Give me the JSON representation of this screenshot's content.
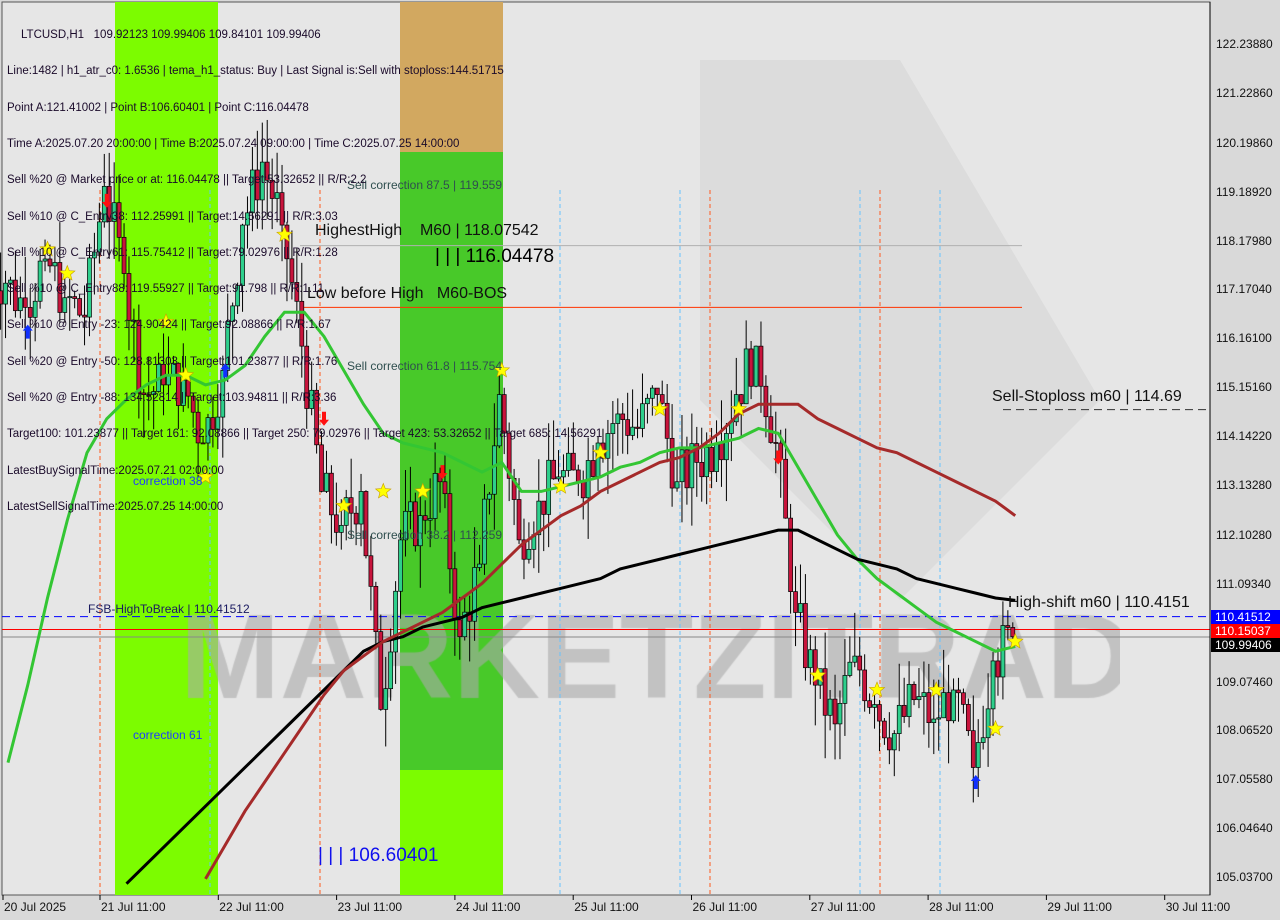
{
  "header": {
    "symbol": "LTCUSD,H1",
    "ohlc": "109.92123 109.99406 109.84101 109.99406",
    "lines": [
      "Line:1482 | h1_atr_c0: 1.6536 | tema_h1_status: Buy | Last Signal is:Sell with stoploss:144.51715",
      "Point A:121.41002 | Point B:106.60401 | Point C:116.04478",
      "Time A:2025.07.20 20:00:00 | Time B:2025.07.24 09:00:00 | Time C:2025.07.25 14:00:00",
      "Sell %20 @ Market price or at: 116.04478 || Target:53.32652 || R/R:2.2",
      "Sell %10 @ C_Entry38: 112.25991 || Target:14.56291 || R/R:3.03",
      "Sell %10 @ C_Entry61: 115.75412 || Target:79.02976 || R/R:1.28",
      "Sell %10 @ C_Entry88: 119.55927 || Target:91.798 || R/R:1.11",
      "Sell %10 @ Entry -23: 124.90424 || Target:92.08866 || R/R:1.67",
      "Sell %20 @ Entry -50: 128.81303 || Target:101.23877 || R/R:1.76",
      "Sell %20 @ Entry -88: 134.52814 || Target:103.94811 || R/R:3.36",
      "Target100: 101.23877 || Target 161: 92.08866 || Target 250: 79.02976 || Target 423: 53.32652 || Target 685: 14.56291",
      "LatestBuySignalTime:2025.07.21 02:00:00",
      "LatestSellSignalTime:2025.07.25 14:00:00"
    ]
  },
  "annotations": {
    "highest_high": "HighestHigh    M60 | 118.07542",
    "point_c": "| | | 116.04478",
    "low_before_high": "Low before High   M60-BOS",
    "sell_corr_875": "Sell correction 87.5 | 119.559",
    "sell_corr_618": "Sell correction 61.8 | 115.754",
    "sell_corr_382": "Sell correction 38.2 | 112.259",
    "correction_38": "correction 38",
    "correction_61": "correction 61",
    "fsb": "FSB-HighToBreak | 110.41512",
    "point_b": "| | | 106.60401",
    "sell_stoploss": "Sell-Stoploss m60 | 114.69",
    "high_shift": "High-shift m60 | 110.4151",
    "watermark": "MARKETZITRADE"
  },
  "price_axis": {
    "ticks": [
      "122.23880",
      "121.22860",
      "120.19860",
      "119.18920",
      "118.17980",
      "117.17040",
      "116.16100",
      "115.15160",
      "114.14220",
      "113.13280",
      "112.10280",
      "111.09340",
      "109.07460",
      "108.06520",
      "107.05580",
      "106.04640",
      "105.03700"
    ],
    "markers": [
      {
        "value": "110.41512",
        "color": "#0000ff"
      },
      {
        "value": "110.15037",
        "color": "#ff0000"
      },
      {
        "value": "109.99406",
        "color": "#000000"
      }
    ]
  },
  "time_axis": [
    "20 Jul 2025",
    "21 Jul 11:00",
    "22 Jul 11:00",
    "23 Jul 11:00",
    "24 Jul 11:00",
    "25 Jul 11:00",
    "26 Jul 11:00",
    "27 Jul 11:00",
    "28 Jul 11:00",
    "29 Jul 11:00",
    "30 Jul 11:00"
  ],
  "chart_data": {
    "type": "candlestick",
    "start": "2025-07-20 16:00",
    "interval_hours": 4,
    "ylim": [
      104.95,
      123.0
    ],
    "closes": [
      117.3,
      116.8,
      117.8,
      117.0,
      116.6,
      119.3,
      117.5,
      115.0,
      115.2,
      115.3,
      114.0,
      115.5,
      118.5,
      119.8,
      118.5,
      116.0,
      113.0,
      112.3,
      113.0,
      108.5,
      112.0,
      112.5,
      113.2,
      110.0,
      111.5,
      115.0,
      112.0,
      112.8,
      113.3,
      113.2,
      114.0,
      114.6,
      114.3,
      115.0,
      113.2,
      113.6,
      114.0,
      115.0,
      116.0,
      114.0,
      110.5,
      109.0,
      108.2,
      109.6,
      108.6,
      108.0,
      108.7,
      108.3,
      108.9,
      107.3,
      109.5,
      110.0
    ],
    "series": [
      {
        "color": "#33c633",
        "values": [
          107.4,
          109.0,
          110.8,
          112.4,
          113.8,
          114.5,
          114.9,
          115.2,
          115.4,
          115.4,
          115.2,
          115.3,
          115.6,
          116.2,
          116.7,
          116.7,
          116.2,
          115.5,
          114.8,
          114.2,
          114.0,
          113.9,
          113.8,
          113.6,
          113.4,
          113.6,
          113.0,
          113.0,
          113.1,
          113.2,
          113.3,
          113.5,
          113.6,
          113.8,
          113.9,
          113.9,
          114.0,
          114.1,
          114.3,
          114.2,
          113.5,
          112.8,
          112.1,
          111.6,
          111.2,
          110.9,
          110.6,
          110.3,
          110.1,
          109.9,
          109.7,
          109.8
        ]
      },
      {
        "color": "#000000",
        "values": [
          null,
          null,
          null,
          null,
          null,
          null,
          104.9,
          105.3,
          105.7,
          106.1,
          106.5,
          106.9,
          107.3,
          107.7,
          108.1,
          108.5,
          108.9,
          109.3,
          109.7,
          109.9,
          110.0,
          110.2,
          110.3,
          110.4,
          110.6,
          110.7,
          110.8,
          110.9,
          111.0,
          111.1,
          111.2,
          111.4,
          111.5,
          111.6,
          111.7,
          111.8,
          111.9,
          112.0,
          112.1,
          112.2,
          112.2,
          112.0,
          111.8,
          111.6,
          111.5,
          111.4,
          111.2,
          111.1,
          111.0,
          110.9,
          110.8,
          110.75
        ]
      },
      {
        "color": "#a52a2a",
        "values": [
          null,
          null,
          null,
          null,
          null,
          null,
          null,
          null,
          null,
          null,
          105.0,
          105.7,
          106.4,
          107.0,
          107.6,
          108.2,
          108.8,
          109.3,
          109.6,
          109.9,
          110.1,
          110.3,
          110.5,
          110.8,
          111.1,
          111.5,
          111.9,
          112.2,
          112.5,
          112.7,
          113.0,
          113.2,
          113.4,
          113.6,
          113.7,
          113.9,
          114.2,
          114.6,
          114.8,
          114.8,
          114.8,
          114.5,
          114.3,
          114.1,
          113.9,
          113.8,
          113.6,
          113.4,
          113.2,
          113.0,
          112.8,
          112.5
        ]
      }
    ],
    "levels": [
      {
        "value": 118.07542,
        "color": "#b0b0b0"
      },
      {
        "value": 116.8,
        "color": "#ff3300"
      },
      {
        "value": 110.41512,
        "color": "#0000ff",
        "dash": true
      },
      {
        "value": 110.15037,
        "color": "#ff0000"
      },
      {
        "value": 109.99406,
        "color": "#888888"
      },
      {
        "value": 114.69,
        "color": "#333333",
        "dash": true
      }
    ],
    "signals": [
      {
        "k": 1,
        "p": 116.3,
        "type": "buy-arrow"
      },
      {
        "k": 2,
        "p": 118.0,
        "type": "star"
      },
      {
        "k": 3,
        "p": 117.5,
        "type": "star"
      },
      {
        "k": 5,
        "p": 119.0,
        "type": "sell-arrow"
      },
      {
        "k": 8,
        "p": 116.5,
        "type": "star"
      },
      {
        "k": 9,
        "p": 115.4,
        "type": "star"
      },
      {
        "k": 10,
        "p": 113.3,
        "type": "star"
      },
      {
        "k": 11,
        "p": 115.5,
        "type": "buy-arrow"
      },
      {
        "k": 14,
        "p": 118.3,
        "type": "star"
      },
      {
        "k": 16,
        "p": 114.5,
        "type": "sell-arrow"
      },
      {
        "k": 17,
        "p": 112.7,
        "type": "star"
      },
      {
        "k": 19,
        "p": 113.0,
        "type": "star"
      },
      {
        "k": 21,
        "p": 113.0,
        "type": "star"
      },
      {
        "k": 22,
        "p": 113.4,
        "type": "sell-arrow"
      },
      {
        "k": 25,
        "p": 115.5,
        "type": "star"
      },
      {
        "k": 28,
        "p": 113.1,
        "type": "star"
      },
      {
        "k": 30,
        "p": 113.8,
        "type": "star"
      },
      {
        "k": 33,
        "p": 114.7,
        "type": "star"
      },
      {
        "k": 37,
        "p": 114.7,
        "type": "star"
      },
      {
        "k": 39,
        "p": 113.7,
        "type": "sell-arrow"
      },
      {
        "k": 41,
        "p": 109.2,
        "type": "star"
      },
      {
        "k": 44,
        "p": 108.9,
        "type": "star"
      },
      {
        "k": 47,
        "p": 108.9,
        "type": "star"
      },
      {
        "k": 49,
        "p": 107.0,
        "type": "buy-arrow"
      },
      {
        "k": 50,
        "p": 108.1,
        "type": "star"
      },
      {
        "k": 51,
        "p": 109.9,
        "type": "star"
      }
    ]
  }
}
